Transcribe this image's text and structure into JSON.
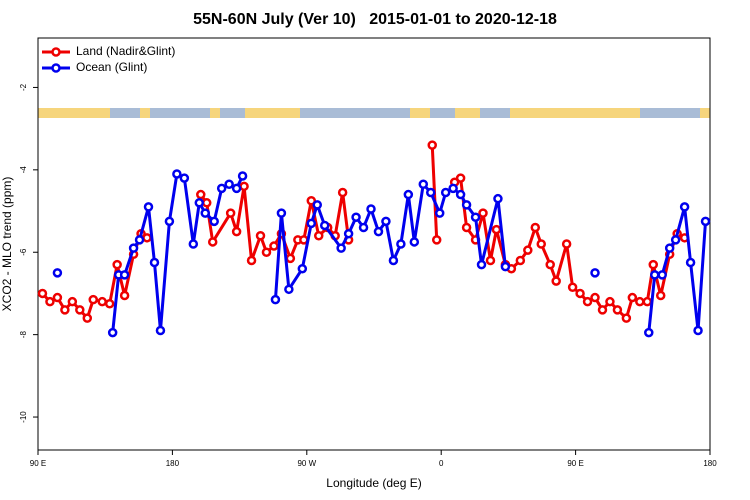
{
  "chart_data": {
    "type": "line",
    "title": "55N-60N July (Ver 10)   2015-01-01 to 2020-12-18",
    "x_label": "Longitude (deg E)",
    "y_label": "XCO2 - MLO trend (ppm)",
    "xlim": [
      90,
      540
    ],
    "xticks": [
      {
        "value": 90,
        "label": "90 E"
      },
      180,
      {
        "value": 270,
        "label": "90 W"
      },
      {
        "value": 360,
        "label": "0"
      },
      {
        "value": 450,
        "label": "90 E"
      },
      {
        "value": 540,
        "label": "180"
      }
    ],
    "ylim": [
      -10.8,
      -0.8
    ],
    "yticks": [
      -10,
      -8,
      -6,
      -4,
      -2
    ],
    "legend": "top-left",
    "series": [
      {
        "name": "Land (Nadir&Glint)",
        "color": "#ee0000",
        "x": [
          93,
          98,
          103,
          108,
          113,
          118,
          123,
          127,
          133,
          138,
          143,
          148,
          154,
          159,
          163,
          null,
          199,
          203,
          207,
          219,
          223,
          228,
          233,
          239,
          243,
          248,
          253,
          259,
          264,
          268,
          273,
          278,
          284,
          289,
          294,
          298,
          null,
          354,
          357,
          null,
          369,
          373,
          377,
          383,
          388,
          393,
          397,
          403,
          407,
          413,
          418,
          423,
          427,
          433,
          437,
          444,
          448,
          453,
          458,
          463,
          468,
          473,
          478,
          484,
          488,
          493,
          498,
          502,
          507,
          513,
          518,
          523
        ],
        "values": [
          -7.0,
          -7.2,
          -7.1,
          -7.4,
          -7.2,
          -7.4,
          -7.6,
          -7.15,
          -7.2,
          -7.25,
          -6.3,
          -7.05,
          -6.05,
          -5.55,
          -5.65,
          null,
          -4.6,
          -4.8,
          -5.75,
          -5.05,
          -5.5,
          -4.4,
          -6.2,
          -5.6,
          -6.0,
          -5.85,
          -5.55,
          -6.15,
          -5.7,
          -5.7,
          -4.75,
          -5.6,
          -5.4,
          -5.6,
          -4.55,
          -5.7,
          null,
          -3.4,
          -5.7,
          null,
          -4.3,
          -4.2,
          -5.4,
          -5.7,
          -5.05,
          -6.2,
          -5.45,
          -6.3,
          -6.4,
          -6.2,
          -5.95,
          -5.4,
          -5.8,
          -6.3,
          -6.7,
          -5.8,
          -6.85,
          -7.0,
          -7.2,
          -7.1,
          -7.4,
          -7.2,
          -7.4,
          -7.6,
          -7.1,
          -7.2,
          -7.2,
          -6.3,
          -7.05,
          -6.05,
          -5.55,
          -5.65
        ]
      },
      {
        "name": "Ocean (Glint)",
        "color": "#0000ee",
        "x": [
          103,
          null,
          140,
          144,
          148,
          154,
          158,
          164,
          168,
          172,
          178,
          183,
          188,
          194,
          198,
          202,
          208,
          213,
          218,
          223,
          227,
          null,
          249,
          253,
          258,
          267,
          273,
          277,
          282,
          293,
          298,
          303,
          308,
          313,
          318,
          323,
          328,
          333,
          338,
          342,
          348,
          353,
          359,
          363,
          368,
          373,
          377,
          383,
          387,
          398,
          403,
          null,
          463,
          null,
          499,
          503,
          508,
          513,
          517,
          523,
          527,
          532,
          537
        ],
        "values": [
          -6.5,
          null,
          -7.95,
          -6.55,
          -6.55,
          -5.9,
          -5.7,
          -4.9,
          -6.25,
          -7.9,
          -5.25,
          -4.1,
          -4.2,
          -5.8,
          -4.8,
          -5.05,
          -5.25,
          -4.45,
          -4.35,
          -4.45,
          -4.15,
          null,
          -7.15,
          -5.05,
          -6.9,
          -6.4,
          -5.3,
          -4.85,
          -5.35,
          -5.9,
          -5.55,
          -5.15,
          -5.4,
          -4.95,
          -5.5,
          -5.25,
          -6.2,
          -5.8,
          -4.6,
          -5.75,
          -4.35,
          -4.55,
          -5.05,
          -4.55,
          -4.45,
          -4.6,
          -4.85,
          -5.15,
          -6.3,
          -4.7,
          -6.35,
          null,
          -6.5,
          null,
          -7.95,
          -6.55,
          -6.55,
          -5.9,
          -5.7,
          -4.9,
          -6.25,
          -7.9,
          -5.25
        ]
      }
    ]
  }
}
